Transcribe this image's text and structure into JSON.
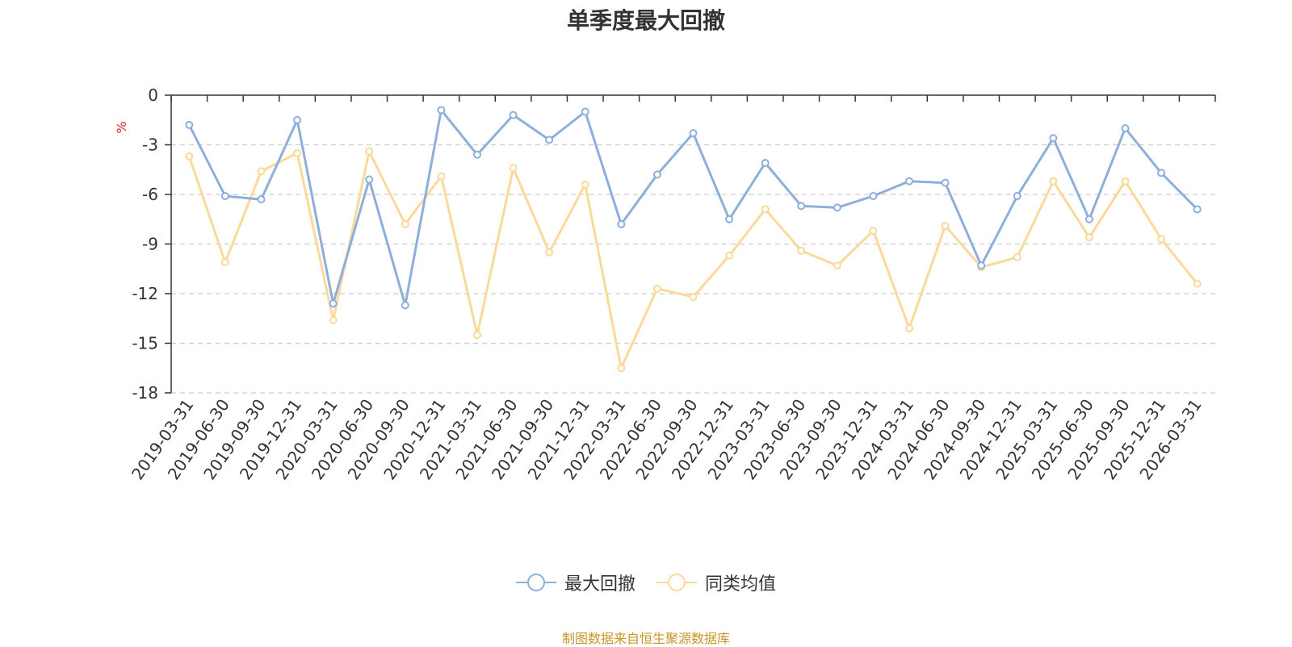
{
  "chart_data": {
    "type": "line",
    "title": "单季度最大回撤",
    "ylabel": "%",
    "xlabel": "",
    "ylim": [
      -18,
      0
    ],
    "yticks": [
      0,
      -3,
      -6,
      -9,
      -12,
      -15,
      -18
    ],
    "grid": true,
    "legend_position": "bottom",
    "categories": [
      "2019-03-31",
      "2019-06-30",
      "2019-09-30",
      "2019-12-31",
      "2020-03-31",
      "2020-06-30",
      "2020-09-30",
      "2020-12-31",
      "2021-03-31",
      "2021-06-30",
      "2021-09-30",
      "2021-12-31",
      "2022-03-31",
      "2022-06-30",
      "2022-09-30",
      "2022-12-31",
      "2023-03-31",
      "2023-06-30",
      "2023-09-30",
      "2023-12-31",
      "2024-03-31",
      "2024-06-30",
      "2024-09-30",
      "2024-12-31",
      "2025-03-31",
      "2025-06-30",
      "2025-09-30",
      "2025-12-31",
      "2026-03-31"
    ],
    "series": [
      {
        "name": "最大回撤",
        "color": "#8eaedb",
        "values": [
          -1.8,
          -6.1,
          -6.3,
          -1.5,
          -12.6,
          -5.1,
          -12.7,
          -0.9,
          -3.6,
          -1.2,
          -2.7,
          -1.0,
          -7.8,
          -4.8,
          -2.3,
          -7.5,
          -4.1,
          -6.7,
          -6.8,
          -6.1,
          -5.2,
          -5.3,
          -10.3,
          -6.1,
          -2.6,
          -7.5,
          -2.0,
          -4.7,
          -6.9
        ]
      },
      {
        "name": "同类均值",
        "color": "#fbd99a",
        "values": [
          -3.7,
          -10.1,
          -4.6,
          -3.5,
          -13.6,
          -3.4,
          -7.8,
          -4.9,
          -14.5,
          -4.4,
          -9.5,
          -5.4,
          -16.5,
          -11.7,
          -12.2,
          -9.7,
          -6.9,
          -9.4,
          -10.3,
          -8.2,
          -14.1,
          -7.9,
          -10.4,
          -9.8,
          -5.2,
          -8.6,
          -5.2,
          -8.7,
          -11.4
        ]
      }
    ]
  },
  "footer": {
    "source": "制图数据来自恒生聚源数据库"
  }
}
